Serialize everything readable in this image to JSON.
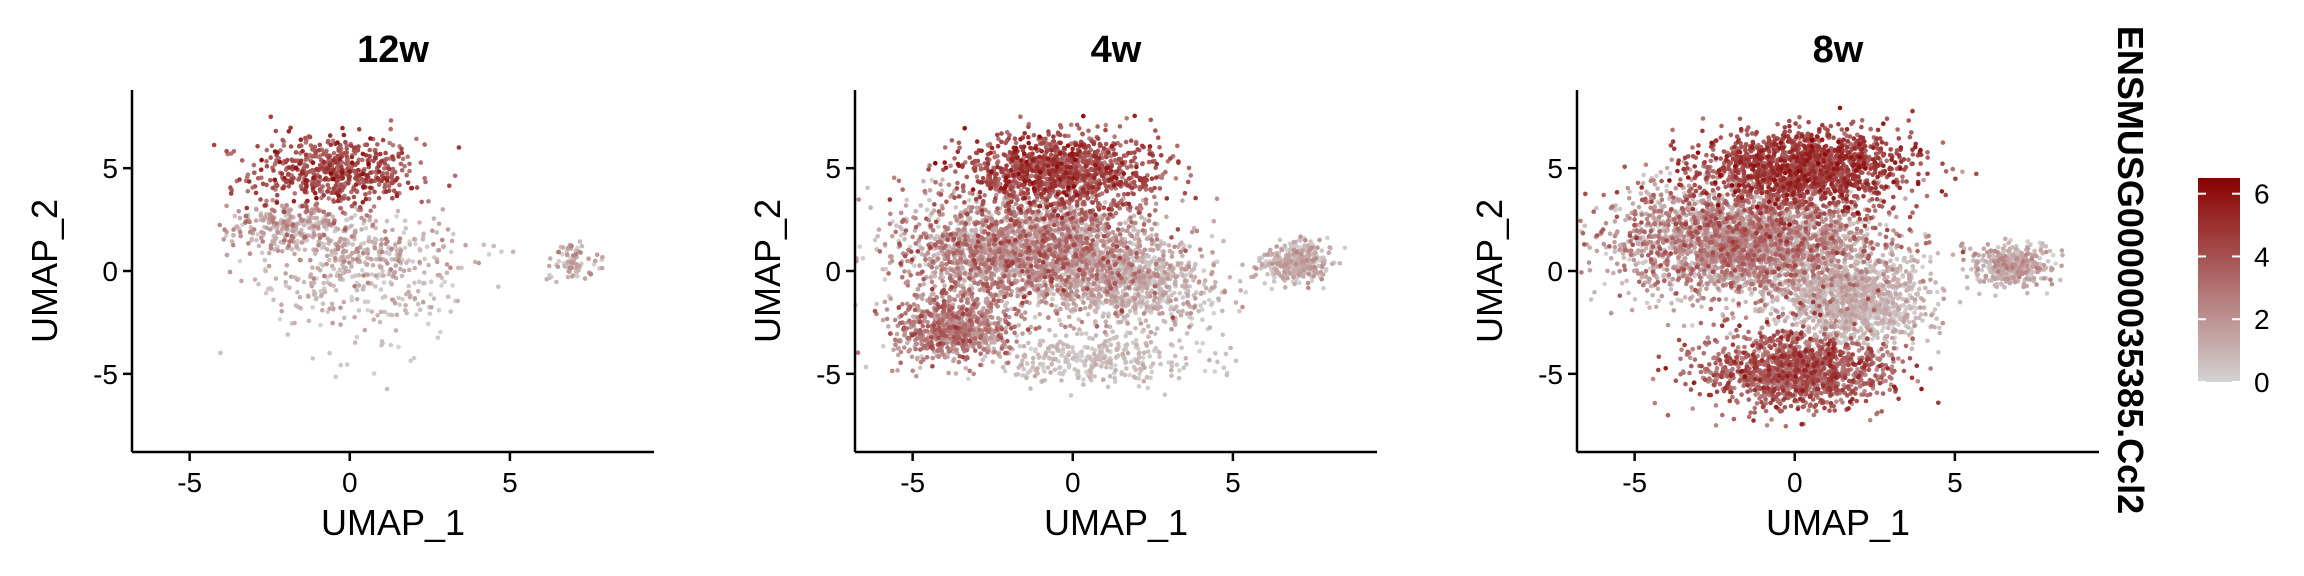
{
  "chart_data": {
    "type": "scatter",
    "title": "",
    "colors": {
      "low": "#d3d3d3",
      "high": "#8b0000"
    },
    "legend": {
      "title": "ENSMUSG00000035385.Ccl2",
      "ticks": [
        0,
        2,
        4,
        6
      ],
      "range": [
        0,
        6.5
      ],
      "placement": "right"
    },
    "shared_axes": {
      "xlabel": "UMAP_1",
      "ylabel": "UMAP_2",
      "xlim": [
        -6.8,
        9.5
      ],
      "ylim": [
        -8.8,
        8.8
      ],
      "xticks": [
        -5,
        0,
        5
      ],
      "yticks": [
        -5,
        0,
        5
      ]
    },
    "panels": [
      {
        "title": "12w",
        "clusters": [
          {
            "cx": -0.5,
            "cy": 4.8,
            "rx": 2.6,
            "ry": 1.8,
            "n": 600,
            "expr": [
              2.5,
              6.5
            ]
          },
          {
            "cx": -1.8,
            "cy": 2.2,
            "rx": 2.0,
            "ry": 1.2,
            "n": 250,
            "expr": [
              0,
              4
            ]
          },
          {
            "cx": 0.5,
            "cy": 1.0,
            "rx": 3.2,
            "ry": 1.6,
            "n": 300,
            "expr": [
              0,
              3
            ]
          },
          {
            "cx": 0.2,
            "cy": -1.0,
            "rx": 3.6,
            "ry": 1.6,
            "n": 160,
            "expr": [
              0,
              2
            ]
          },
          {
            "cx": 7.0,
            "cy": 0.5,
            "rx": 0.9,
            "ry": 1.1,
            "n": 80,
            "expr": [
              0,
              3
            ]
          },
          {
            "cx": 0.0,
            "cy": -4.5,
            "rx": 3.5,
            "ry": 2.0,
            "n": 18,
            "expr": [
              0,
              1
            ]
          }
        ]
      },
      {
        "title": "4w",
        "clusters": [
          {
            "cx": -0.3,
            "cy": 4.8,
            "rx": 3.0,
            "ry": 1.8,
            "n": 1200,
            "expr": [
              2.5,
              6.5
            ]
          },
          {
            "cx": -1.5,
            "cy": 1.0,
            "rx": 3.8,
            "ry": 2.6,
            "n": 2400,
            "expr": [
              0,
              5
            ]
          },
          {
            "cx": -3.8,
            "cy": -2.8,
            "rx": 1.8,
            "ry": 1.5,
            "n": 700,
            "expr": [
              1,
              5
            ]
          },
          {
            "cx": 2.0,
            "cy": -0.5,
            "rx": 2.5,
            "ry": 2.0,
            "n": 800,
            "expr": [
              0,
              2.5
            ]
          },
          {
            "cx": 0.5,
            "cy": -4.2,
            "rx": 3.5,
            "ry": 1.3,
            "n": 350,
            "expr": [
              0,
              1.5
            ]
          },
          {
            "cx": 7.0,
            "cy": 0.4,
            "rx": 1.0,
            "ry": 1.0,
            "n": 350,
            "expr": [
              0,
              2.5
            ]
          }
        ]
      },
      {
        "title": "8w",
        "clusters": [
          {
            "cx": 0.3,
            "cy": 5.0,
            "rx": 3.2,
            "ry": 1.8,
            "n": 1500,
            "expr": [
              3,
              6.5
            ]
          },
          {
            "cx": -1.5,
            "cy": 1.5,
            "rx": 4.0,
            "ry": 2.8,
            "n": 3000,
            "expr": [
              0,
              5
            ]
          },
          {
            "cx": 1.8,
            "cy": -1.5,
            "rx": 2.3,
            "ry": 2.2,
            "n": 1200,
            "expr": [
              0,
              2
            ]
          },
          {
            "cx": 0.0,
            "cy": -4.8,
            "rx": 2.8,
            "ry": 1.8,
            "n": 1400,
            "expr": [
              2,
              6
            ]
          },
          {
            "cx": 6.8,
            "cy": 0.3,
            "rx": 1.2,
            "ry": 1.0,
            "n": 400,
            "expr": [
              0,
              3
            ]
          }
        ]
      }
    ]
  }
}
